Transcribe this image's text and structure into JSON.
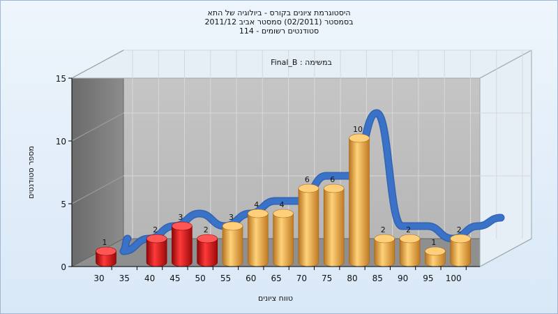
{
  "chart_data": {
    "type": "bar",
    "title_lines": [
      "היסטוגרמת ציונים בקורס - ביולוגיה של התא",
      "בסמסטר (02/2011) סמסטר אביב 2011/12",
      "סטודנטים רשומים - 114"
    ],
    "inner_label": "במשימה : Final_B",
    "xlabel": "טווח ציונים",
    "ylabel": "מספר סטודנטים",
    "x_ticks": [
      "30",
      "35",
      "40",
      "45",
      "50",
      "55",
      "60",
      "65",
      "70",
      "75",
      "80",
      "85",
      "90",
      "95",
      "100"
    ],
    "y_ticks": [
      0,
      5,
      10,
      15
    ],
    "ylim": [
      0,
      15
    ],
    "fail_color": "#e01818",
    "pass_color": "#f0a83a",
    "curve_color": "#3a72c8",
    "bars": [
      {
        "value": 1,
        "label": "1",
        "status": "fail"
      },
      {
        "value": 0,
        "label": "",
        "status": "fail"
      },
      {
        "value": 2,
        "label": "2",
        "status": "fail"
      },
      {
        "value": 3,
        "label": "3",
        "status": "fail"
      },
      {
        "value": 2,
        "label": "2",
        "status": "fail"
      },
      {
        "value": 3,
        "label": "3",
        "status": "pass"
      },
      {
        "value": 4,
        "label": "4",
        "status": "pass"
      },
      {
        "value": 4,
        "label": "4",
        "status": "pass"
      },
      {
        "value": 6,
        "label": "6",
        "status": "pass"
      },
      {
        "value": 6,
        "label": "6",
        "status": "pass"
      },
      {
        "value": 10,
        "label": "10",
        "status": "pass"
      },
      {
        "value": 2,
        "label": "2",
        "status": "pass"
      },
      {
        "value": 2,
        "label": "2",
        "status": "pass"
      },
      {
        "value": 1,
        "label": "1",
        "status": "pass"
      },
      {
        "value": 2,
        "label": "2",
        "status": "pass"
      }
    ],
    "curve": [
      0,
      1,
      2,
      3,
      2,
      3,
      4,
      4,
      6,
      6,
      11,
      2,
      2,
      1,
      2
    ],
    "grid": true
  }
}
